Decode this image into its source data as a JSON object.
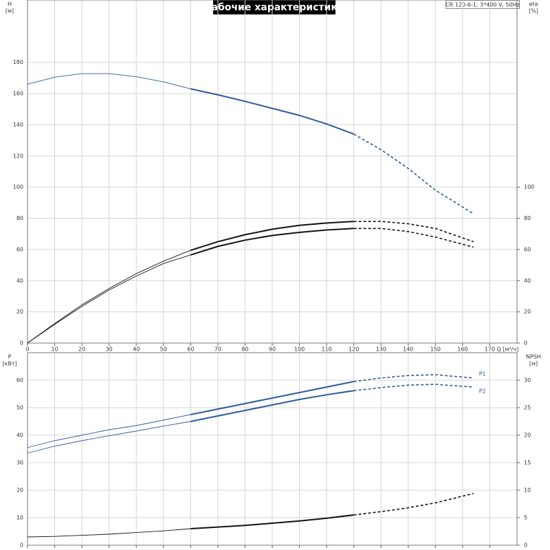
{
  "title": "Рабочие характеристики",
  "model": "CR 120-6-1, 3*400 V, 50Hz",
  "chart_data": [
    {
      "type": "line",
      "x_label": "Q [м³/ч]",
      "y_label": "H",
      "y_unit": "[м]",
      "y2_label": "eta",
      "y2_unit": "[%]",
      "x": [
        0,
        10,
        20,
        30,
        40,
        50,
        60,
        70,
        80,
        90,
        100,
        110,
        120,
        130,
        140,
        150,
        164
      ],
      "xlim": [
        0,
        180
      ],
      "xticks": [
        0,
        10,
        20,
        30,
        40,
        50,
        60,
        70,
        80,
        90,
        100,
        110,
        120,
        130,
        140,
        150,
        160,
        170
      ],
      "ylim": [
        0,
        220
      ],
      "yticks": [
        0,
        20,
        40,
        60,
        80,
        100,
        120,
        140,
        160,
        180
      ],
      "y2lim": [
        0,
        220
      ],
      "y2ticks": [
        0,
        20,
        40,
        60,
        80,
        100
      ],
      "grid": true,
      "series": [
        {
          "color": "#2a5a9a",
          "values": [
            166,
            170.5,
            172.8,
            172.8,
            170.8,
            167.5,
            163,
            159.2,
            155,
            150.5,
            146,
            140.5,
            134,
            124,
            112,
            98,
            83
          ]
        },
        {
          "color": "#111111",
          "axis": "y2",
          "values": [
            0,
            12.5,
            24.5,
            35,
            44.5,
            52.5,
            59.5,
            65,
            69.5,
            73,
            75.5,
            77,
            78,
            78,
            76.5,
            73.5,
            65
          ]
        },
        {
          "color": "#111111",
          "axis": "y2",
          "values": [
            0,
            12,
            23.5,
            34,
            43,
            51,
            56.5,
            62,
            66,
            69,
            71,
            72.5,
            73.5,
            73.5,
            71.5,
            68,
            61.5
          ]
        }
      ]
    },
    {
      "type": "line",
      "y_label": "P",
      "y_unit": "[кВт]",
      "y2_label": "NPSH",
      "y2_unit": "[м]",
      "x": [
        0,
        10,
        20,
        30,
        40,
        50,
        60,
        70,
        80,
        90,
        100,
        110,
        120,
        130,
        140,
        150,
        164
      ],
      "xlim": [
        0,
        180
      ],
      "xticks": [
        0,
        10,
        20,
        30,
        40,
        50,
        60,
        70,
        80,
        90,
        100,
        110,
        120,
        130,
        140,
        150,
        160,
        170
      ],
      "ylim": [
        0,
        70
      ],
      "yticks": [
        0,
        10,
        20,
        30,
        40,
        50,
        60
      ],
      "y2lim": [
        0,
        35
      ],
      "y2ticks": [
        0,
        5,
        10,
        15,
        20,
        25,
        30
      ],
      "grid": true,
      "series": [
        {
          "name": "P1",
          "color": "#2a5a9a",
          "values": [
            35.5,
            38,
            40,
            42,
            43.5,
            45.5,
            47.5,
            49.5,
            51.5,
            53.5,
            55.5,
            57.5,
            59.5,
            60.8,
            61.7,
            62,
            60.8
          ]
        },
        {
          "name": "P2",
          "color": "#2a5a9a",
          "values": [
            33.5,
            36,
            38,
            39.8,
            41.5,
            43.3,
            45,
            47,
            49,
            51,
            53,
            54.7,
            56.2,
            57.3,
            58.2,
            58.5,
            57.5
          ]
        },
        {
          "color": "#111111",
          "axis": "y2",
          "values": [
            1.5,
            1.6,
            1.8,
            2,
            2.3,
            2.6,
            3,
            3.3,
            3.6,
            4,
            4.4,
            4.9,
            5.5,
            6.1,
            6.8,
            7.7,
            9.4
          ]
        }
      ]
    }
  ]
}
